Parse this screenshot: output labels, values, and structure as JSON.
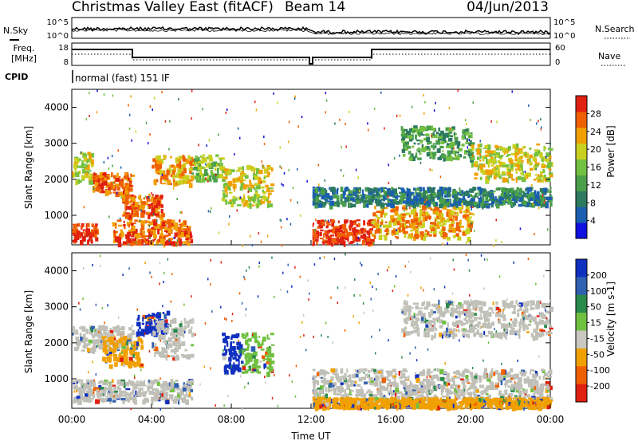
{
  "header": {
    "title": "Christmas Valley East (fitACF)",
    "beam": "Beam 14",
    "date": "04/Jun/2013"
  },
  "status_panel": {
    "nsky_label": "N.Sky",
    "nsearch_label": "N.Search",
    "noise_ticks": [
      "10^5",
      "10^0"
    ],
    "freq_label_line1": "Freq.",
    "freq_label_line2": "[MHz]",
    "freq_ticks": [
      "8",
      "18"
    ],
    "nave_label": "Nave",
    "nave_ticks": [
      "60",
      "0"
    ],
    "cpid_label": "CPID",
    "cpid_value": "normal (fast) 151 IF"
  },
  "x_axis": {
    "label": "Time UT",
    "ticks": [
      "00:00",
      "04:00",
      "08:00",
      "12:00",
      "16:00",
      "20:00",
      "00:00"
    ]
  },
  "chart_data": [
    {
      "type": "heatmap",
      "title": "",
      "xlabel": "",
      "ylabel": "Slant Range [km]",
      "xlim": [
        0,
        24
      ],
      "ylim": [
        180,
        4500
      ],
      "y_ticks": [
        "1000",
        "2000",
        "3000",
        "4000"
      ],
      "colorbar": {
        "label": "Power [dB]",
        "ticks": [
          "4",
          "8",
          "12",
          "16",
          "20",
          "24",
          "28"
        ],
        "colors": [
          "#1010e0",
          "#1a5fb0",
          "#2d7a60",
          "#4aa04a",
          "#74c040",
          "#c8d020",
          "#f0a000",
          "#f06000",
          "#e02010"
        ]
      },
      "regions": [
        {
          "t": [
            0.0,
            1.0
          ],
          "r": [
            1950,
            2800
          ],
          "level": 5
        },
        {
          "t": [
            0.0,
            1.2
          ],
          "r": [
            300,
            800
          ],
          "level": 8
        },
        {
          "t": [
            1.0,
            3.0
          ],
          "r": [
            1650,
            2200
          ],
          "level": 7
        },
        {
          "t": [
            2.5,
            4.5
          ],
          "r": [
            1000,
            1600
          ],
          "level": 7
        },
        {
          "t": [
            4.0,
            6.0
          ],
          "r": [
            1900,
            2700
          ],
          "level": 6
        },
        {
          "t": [
            6.0,
            7.5
          ],
          "r": [
            2000,
            2700
          ],
          "level": 4
        },
        {
          "t": [
            7.5,
            10.0
          ],
          "r": [
            1300,
            2400
          ],
          "level": 5
        },
        {
          "t": [
            2.0,
            6.0
          ],
          "r": [
            250,
            900
          ],
          "level": 7
        },
        {
          "t": [
            12.0,
            15.0
          ],
          "r": [
            250,
            900
          ],
          "level": 8
        },
        {
          "t": [
            15.0,
            20.0
          ],
          "r": [
            400,
            1300
          ],
          "level": 6
        },
        {
          "t": [
            16.5,
            20.0
          ],
          "r": [
            2600,
            3500
          ],
          "level": 3
        },
        {
          "t": [
            20.0,
            24.0
          ],
          "r": [
            2000,
            3000
          ],
          "level": 5
        },
        {
          "t": [
            12.0,
            24.0
          ],
          "r": [
            1300,
            1800
          ],
          "level": 2
        }
      ]
    },
    {
      "type": "heatmap",
      "title": "",
      "xlabel": "Time UT",
      "ylabel": "Slant Range [km]",
      "xlim": [
        0,
        24
      ],
      "ylim": [
        180,
        4500
      ],
      "y_ticks": [
        "1000",
        "2000",
        "3000",
        "4000"
      ],
      "colorbar": {
        "label": "Velocity [m s-1]",
        "ticks": [
          "200",
          "100",
          "50",
          "15",
          "-15",
          "-50",
          "-100",
          "-200"
        ],
        "colors": [
          "#1030c0",
          "#3060b0",
          "#2a8a4a",
          "#70c040",
          "#c8c8c0",
          "#f0a000",
          "#f06000",
          "#e02010"
        ]
      },
      "ground_scatter_color": "#c0c0b8",
      "regions": [
        {
          "t": [
            0.0,
            3.0
          ],
          "r": [
            1800,
            2500
          ],
          "class": "gray"
        },
        {
          "t": [
            0.0,
            6.0
          ],
          "r": [
            400,
            1000
          ],
          "class": "gray"
        },
        {
          "t": [
            3.2,
            4.8
          ],
          "r": [
            2300,
            2900
          ],
          "class": "blue"
        },
        {
          "t": [
            4.0,
            6.0
          ],
          "r": [
            1600,
            2700
          ],
          "class": "gray"
        },
        {
          "t": [
            7.5,
            8.5
          ],
          "r": [
            1200,
            2300
          ],
          "class": "blue"
        },
        {
          "t": [
            8.5,
            10.0
          ],
          "r": [
            1200,
            2300
          ],
          "class": "green"
        },
        {
          "t": [
            1.5,
            3.5
          ],
          "r": [
            1400,
            2200
          ],
          "class": "orange"
        },
        {
          "t": [
            12.0,
            24.0
          ],
          "r": [
            400,
            1300
          ],
          "class": "gray"
        },
        {
          "t": [
            16.5,
            24.0
          ],
          "r": [
            2200,
            3200
          ],
          "class": "gray"
        },
        {
          "t": [
            12.0,
            24.0
          ],
          "r": [
            250,
            500
          ],
          "class": "orange"
        }
      ]
    }
  ]
}
